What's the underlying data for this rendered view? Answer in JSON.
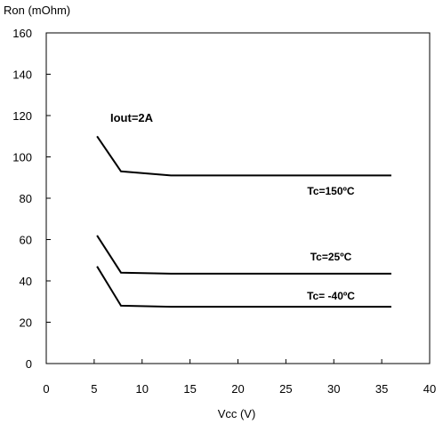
{
  "chart_data": {
    "type": "line",
    "ylabel": "Ron (mOhm)",
    "xlabel": "Vcc (V)",
    "xlim": [
      0,
      40
    ],
    "ylim": [
      0,
      160
    ],
    "xticks": [
      "0",
      "5",
      "10",
      "15",
      "20",
      "25",
      "30",
      "35",
      "40"
    ],
    "yticks": [
      "0",
      "20",
      "40",
      "60",
      "80",
      "100",
      "120",
      "140",
      "160"
    ],
    "grid": false,
    "annotation": "Iout=2A",
    "series": [
      {
        "name": "Tc=150ºC",
        "x": [
          5.3,
          7.8,
          13,
          36
        ],
        "y": [
          110,
          93,
          91,
          91
        ]
      },
      {
        "name": "Tc=25ºC",
        "x": [
          5.3,
          7.8,
          13,
          36
        ],
        "y": [
          62,
          44,
          43.5,
          43.5
        ]
      },
      {
        "name": "Tc= -40ºC",
        "x": [
          5.3,
          7.8,
          13,
          36
        ],
        "y": [
          47,
          28,
          27.5,
          27.5
        ]
      }
    ]
  }
}
